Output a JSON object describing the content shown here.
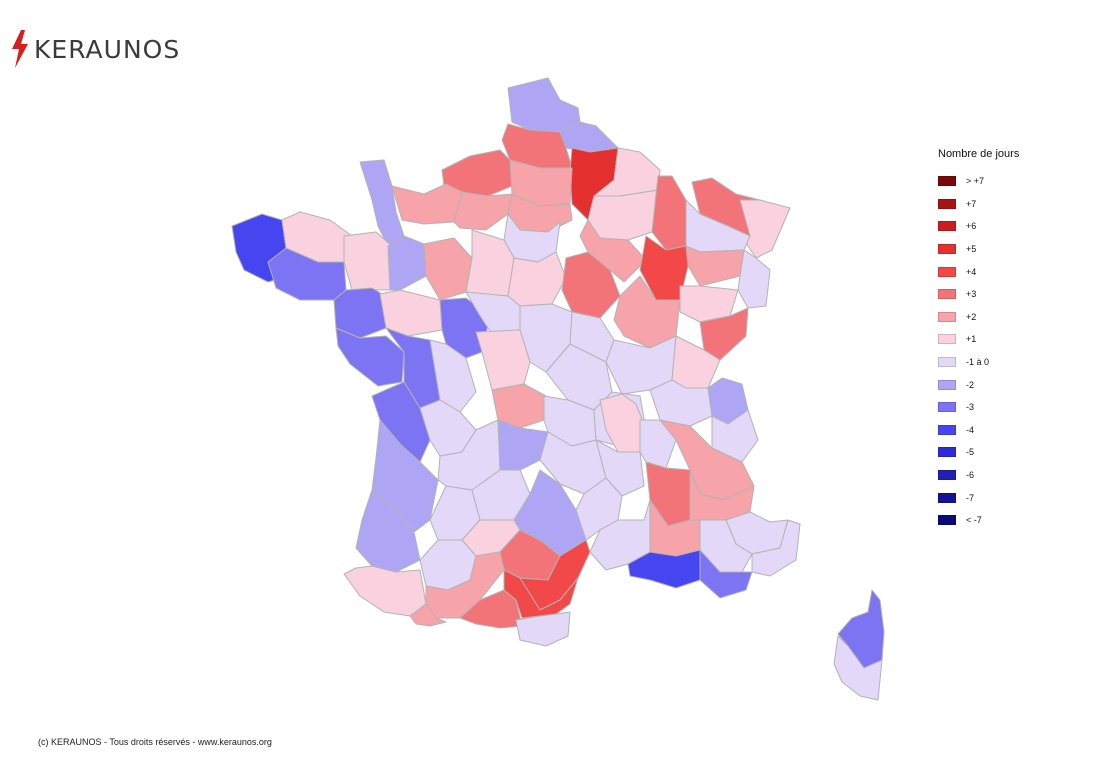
{
  "brand": {
    "name": "KERAUNOS",
    "accent": "#d42020",
    "text_color": "#3b3b3b"
  },
  "legend": {
    "title": "Nombre de jours",
    "items": [
      {
        "label": "> +7",
        "color": "#7a0a0a"
      },
      {
        "label": "+7",
        "color": "#a81414"
      },
      {
        "label": "+6",
        "color": "#c91f1f"
      },
      {
        "label": "+5",
        "color": "#e53030"
      },
      {
        "label": "+4",
        "color": "#f24848"
      },
      {
        "label": "+3",
        "color": "#f37478"
      },
      {
        "label": "+2",
        "color": "#f7a3aa"
      },
      {
        "label": "+1",
        "color": "#fad1de"
      },
      {
        "label": "-1 à 0",
        "color": "#e3d8f7"
      },
      {
        "label": "-2",
        "color": "#aea6f5"
      },
      {
        "label": "-3",
        "color": "#7c74f2"
      },
      {
        "label": "-4",
        "color": "#4646f0"
      },
      {
        "label": "-5",
        "color": "#2d2ad6"
      },
      {
        "label": "-6",
        "color": "#2020b4"
      },
      {
        "label": "-7",
        "color": "#131396"
      },
      {
        "label": "< -7",
        "color": "#0a0a78"
      }
    ]
  },
  "footer": {
    "text": "(c) KERAUNOS - Tous droits réservés - www.keraunos.org"
  },
  "map": {
    "border_color": "#b3b3b3",
    "regions": [
      {
        "name": "nord-flandre",
        "value": "-2"
      },
      {
        "name": "nord-hainaut",
        "value": "-2"
      },
      {
        "name": "pas-de-calais-cote",
        "value": "+3"
      },
      {
        "name": "aisne",
        "value": "+5"
      },
      {
        "name": "ardennes",
        "value": "+1"
      },
      {
        "name": "seine-maritime",
        "value": "+3"
      },
      {
        "name": "somme",
        "value": "+2"
      },
      {
        "name": "oise",
        "value": "+2"
      },
      {
        "name": "marne",
        "value": "+1"
      },
      {
        "name": "meuse",
        "value": "+3"
      },
      {
        "name": "moselle",
        "value": "+3"
      },
      {
        "name": "bas-rhin",
        "value": "+1"
      },
      {
        "name": "manche-nord",
        "value": "-2"
      },
      {
        "name": "calvados",
        "value": "+2"
      },
      {
        "name": "eure",
        "value": "+2"
      },
      {
        "name": "ile-de-france",
        "value": "-1 à 0"
      },
      {
        "name": "meurthe-et-moselle",
        "value": "-1 à 0"
      },
      {
        "name": "vosges",
        "value": "+2"
      },
      {
        "name": "haut-rhin",
        "value": "-1 à 0"
      },
      {
        "name": "finistere",
        "value": "-4"
      },
      {
        "name": "cotes-d-armor",
        "value": "+1"
      },
      {
        "name": "ille-et-vilaine",
        "value": "+1"
      },
      {
        "name": "morbihan",
        "value": "-3"
      },
      {
        "name": "loire-atlantique",
        "value": "-3"
      },
      {
        "name": "mayenne",
        "value": "-2"
      },
      {
        "name": "sarthe",
        "value": "+2"
      },
      {
        "name": "eure-et-loir",
        "value": "+1"
      },
      {
        "name": "loiret",
        "value": "+1"
      },
      {
        "name": "yonne",
        "value": "+3"
      },
      {
        "name": "aube",
        "value": "+2"
      },
      {
        "name": "haute-marne",
        "value": "+4"
      },
      {
        "name": "maine-et-loire",
        "value": "+1"
      },
      {
        "name": "indre-et-loire",
        "value": "-3"
      },
      {
        "name": "loir-et-cher",
        "value": "-1 à 0"
      },
      {
        "name": "cher",
        "value": "-1 à 0"
      },
      {
        "name": "nievre",
        "value": "-1 à 0"
      },
      {
        "name": "cote-d-or",
        "value": "+2"
      },
      {
        "name": "haute-saone",
        "value": "+1"
      },
      {
        "name": "doubs",
        "value": "+3"
      },
      {
        "name": "vendee",
        "value": "-3"
      },
      {
        "name": "deux-sevres",
        "value": "-3"
      },
      {
        "name": "vienne",
        "value": "-1 à 0"
      },
      {
        "name": "indre",
        "value": "+1"
      },
      {
        "name": "allier",
        "value": "-1 à 0"
      },
      {
        "name": "saone-et-loire",
        "value": "-1 à 0"
      },
      {
        "name": "jura",
        "value": "+1"
      },
      {
        "name": "ain",
        "value": "-1 à 0"
      },
      {
        "name": "haute-savoie",
        "value": "-2"
      },
      {
        "name": "charente-maritime",
        "value": "-3"
      },
      {
        "name": "charente",
        "value": "-1 à 0"
      },
      {
        "name": "haute-vienne",
        "value": "+2"
      },
      {
        "name": "creuse",
        "value": "-1 à 0"
      },
      {
        "name": "puy-de-dome",
        "value": "-1 à 0"
      },
      {
        "name": "loire",
        "value": "+1"
      },
      {
        "name": "rhone",
        "value": "-1 à 0"
      },
      {
        "name": "isere",
        "value": "+2"
      },
      {
        "name": "savoie",
        "value": "-1 à 0"
      },
      {
        "name": "gironde",
        "value": "-2"
      },
      {
        "name": "dordogne",
        "value": "-1 à 0"
      },
      {
        "name": "correze",
        "value": "-2"
      },
      {
        "name": "cantal",
        "value": "-1 à 0"
      },
      {
        "name": "haute-loire",
        "value": "-1 à 0"
      },
      {
        "name": "ardeche",
        "value": "+3"
      },
      {
        "name": "drome",
        "value": "+2"
      },
      {
        "name": "hautes-alpes",
        "value": "-1 à 0"
      },
      {
        "name": "landes",
        "value": "-2"
      },
      {
        "name": "lot-et-garonne",
        "value": "-1 à 0"
      },
      {
        "name": "lot",
        "value": "-1 à 0"
      },
      {
        "name": "aveyron",
        "value": "-2"
      },
      {
        "name": "lozere",
        "value": "-1 à 0"
      },
      {
        "name": "gard",
        "value": "-1 à 0"
      },
      {
        "name": "vaucluse",
        "value": "+2"
      },
      {
        "name": "alpes-de-haute-provence",
        "value": "-1 à 0"
      },
      {
        "name": "alpes-maritimes",
        "value": "-1 à 0"
      },
      {
        "name": "tarn-et-garonne",
        "value": "+1"
      },
      {
        "name": "tarn",
        "value": "+3"
      },
      {
        "name": "herault",
        "value": "+4"
      },
      {
        "name": "bouches-du-rhone",
        "value": "-4"
      },
      {
        "name": "var",
        "value": "-3"
      },
      {
        "name": "pyrenees-atlantiques",
        "value": "+1"
      },
      {
        "name": "gers",
        "value": "-1 à 0"
      },
      {
        "name": "haute-garonne",
        "value": "+2"
      },
      {
        "name": "hautes-pyrenees",
        "value": "+2"
      },
      {
        "name": "ariege",
        "value": "+3"
      },
      {
        "name": "aude",
        "value": "+4"
      },
      {
        "name": "pyrenees-orientales",
        "value": "-1 à 0"
      },
      {
        "name": "haute-corse",
        "value": "-3"
      },
      {
        "name": "corse-du-sud",
        "value": "-1 à 0"
      }
    ]
  }
}
